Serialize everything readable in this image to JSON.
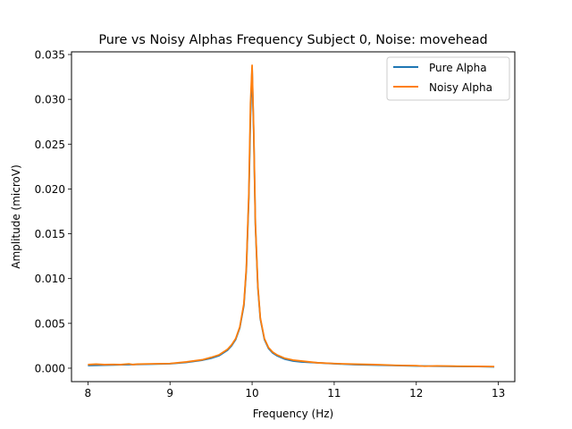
{
  "chart_data": {
    "type": "line",
    "title": "Pure vs Noisy Alphas Frequency Subject 0, Noise: movehead",
    "xlabel": "Frequency (Hz)",
    "ylabel": "Amplitude (microV)",
    "xlim": [
      7.8,
      13.2
    ],
    "ylim": [
      -0.0015,
      0.0353
    ],
    "xticks": [
      8,
      9,
      10,
      11,
      12,
      13
    ],
    "xtick_labels": [
      "8",
      "9",
      "10",
      "11",
      "12",
      "13"
    ],
    "yticks": [
      0.0,
      0.005,
      0.01,
      0.015,
      0.02,
      0.025,
      0.03,
      0.035
    ],
    "ytick_labels": [
      "0.000",
      "0.005",
      "0.010",
      "0.015",
      "0.020",
      "0.025",
      "0.030",
      "0.035"
    ],
    "grid": false,
    "legend_position": "top-right",
    "series": [
      {
        "name": "Pure Alpha",
        "color": "#1f77b4",
        "x": [
          8.0,
          8.25,
          8.5,
          8.75,
          9.0,
          9.2,
          9.4,
          9.5,
          9.6,
          9.7,
          9.75,
          9.8,
          9.85,
          9.9,
          9.93,
          9.96,
          9.98,
          10.0,
          10.02,
          10.04,
          10.07,
          10.1,
          10.15,
          10.2,
          10.25,
          10.3,
          10.4,
          10.5,
          10.6,
          10.8,
          11.0,
          11.25,
          11.5,
          11.75,
          12.0,
          12.25,
          12.5,
          12.75,
          12.95
        ],
        "values": [
          0.0003,
          0.00035,
          0.0004,
          0.00045,
          0.0005,
          0.00065,
          0.0009,
          0.0011,
          0.0014,
          0.002,
          0.0025,
          0.0032,
          0.0045,
          0.007,
          0.011,
          0.019,
          0.028,
          0.0335,
          0.026,
          0.016,
          0.009,
          0.0055,
          0.0032,
          0.0022,
          0.0017,
          0.0014,
          0.001,
          0.0008,
          0.0007,
          0.0006,
          0.0005,
          0.0004,
          0.00035,
          0.0003,
          0.00025,
          0.00022,
          0.0002,
          0.00018,
          0.00015
        ]
      },
      {
        "name": "Noisy Alpha",
        "color": "#ff7f0e",
        "x": [
          8.0,
          8.1,
          8.2,
          8.3,
          8.4,
          8.5,
          8.55,
          8.6,
          8.75,
          9.0,
          9.2,
          9.4,
          9.5,
          9.6,
          9.7,
          9.75,
          9.8,
          9.85,
          9.9,
          9.93,
          9.96,
          9.98,
          10.0,
          10.02,
          10.04,
          10.07,
          10.1,
          10.15,
          10.2,
          10.25,
          10.3,
          10.4,
          10.5,
          10.6,
          10.8,
          11.0,
          11.25,
          11.5,
          11.75,
          12.0,
          12.1,
          12.25,
          12.5,
          12.75,
          12.95
        ],
        "values": [
          0.0004,
          0.00045,
          0.0004,
          0.00042,
          0.0004,
          0.00048,
          0.0004,
          0.00045,
          0.00048,
          0.00052,
          0.0007,
          0.00095,
          0.0012,
          0.0015,
          0.0021,
          0.0026,
          0.0033,
          0.0046,
          0.0072,
          0.0112,
          0.0195,
          0.0295,
          0.0338,
          0.0265,
          0.0162,
          0.0092,
          0.0056,
          0.0033,
          0.0023,
          0.0018,
          0.0015,
          0.0011,
          0.0009,
          0.0008,
          0.0006,
          0.00052,
          0.00045,
          0.0004,
          0.00032,
          0.00028,
          0.00022,
          0.00026,
          0.00022,
          0.0002,
          0.00018
        ]
      }
    ]
  }
}
